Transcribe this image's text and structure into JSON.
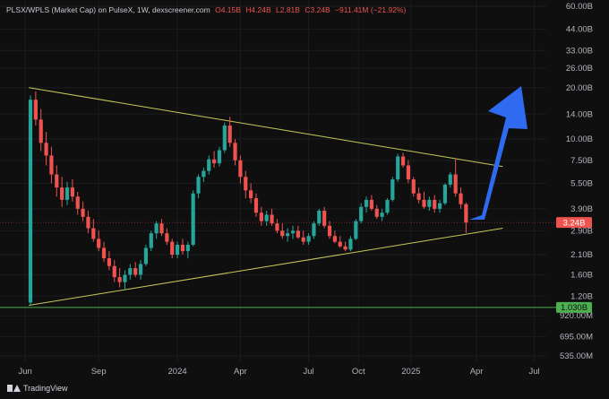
{
  "header": {
    "pair": "PLSX/WPLS (Market Cap) on PulseX, 1W, dexscreener.com",
    "o": "O4.15B",
    "h": "H4.24B",
    "l": "L2.81B",
    "c": "C3.24B",
    "change": "−911.41M (−21.92%)"
  },
  "footer": {
    "brand": "TradingView"
  },
  "colors": {
    "up": "#26a69a",
    "down": "#ef5350",
    "trend": "#c8c85a",
    "arrow": "#2f6bf0",
    "support": "#4caf50",
    "bg": "#0f0f10"
  },
  "chart_data": {
    "type": "candlestick",
    "y_scale": "log",
    "ylim": [
      "535.00M",
      "60.00B"
    ],
    "y_tick_labels": [
      "60.00B",
      "44.00B",
      "33.00B",
      "26.00B",
      "20.00B",
      "14.00B",
      "10.00B",
      "7.50B",
      "5.50B",
      "3.90B",
      "2.90B",
      "2.10B",
      "1.60B",
      "1.20B",
      "920.00M",
      "695.00M",
      "535.00M"
    ],
    "x_tick_labels": [
      "Jun",
      "Sep",
      "2024",
      "Apr",
      "Jul",
      "Oct",
      "2025",
      "Apr",
      "Jul"
    ],
    "last_price_label": "3.24B",
    "support_label": "1.030B",
    "annotations": [
      "descending trendline",
      "ascending trendline",
      "blue up arrow"
    ],
    "candles": [
      [
        1.1,
        18,
        1.05,
        17
      ],
      [
        17,
        19,
        12,
        13
      ],
      [
        13,
        15,
        8.5,
        9.5
      ],
      [
        9.5,
        11,
        7,
        8
      ],
      [
        8,
        9,
        5.5,
        6.2
      ],
      [
        6.2,
        7,
        4.6,
        5.2
      ],
      [
        5.2,
        6,
        4,
        4.4
      ],
      [
        4.4,
        5.6,
        4.1,
        5.2
      ],
      [
        5.2,
        5.8,
        4.3,
        4.6
      ],
      [
        4.6,
        4.9,
        3.6,
        3.9
      ],
      [
        3.9,
        4.3,
        3.3,
        3.5
      ],
      [
        3.5,
        3.8,
        2.8,
        3.0
      ],
      [
        3.0,
        3.4,
        2.5,
        2.6
      ],
      [
        2.6,
        2.9,
        2.2,
        2.3
      ],
      [
        2.3,
        2.5,
        1.9,
        2.0
      ],
      [
        2.0,
        2.2,
        1.7,
        1.8
      ],
      [
        1.8,
        1.95,
        1.45,
        1.55
      ],
      [
        1.55,
        1.75,
        1.35,
        1.45
      ],
      [
        1.45,
        1.7,
        1.3,
        1.6
      ],
      [
        1.6,
        1.85,
        1.5,
        1.75
      ],
      [
        1.75,
        1.9,
        1.55,
        1.6
      ],
      [
        1.6,
        1.95,
        1.5,
        1.85
      ],
      [
        1.85,
        2.4,
        1.8,
        2.3
      ],
      [
        2.3,
        2.9,
        2.2,
        2.8
      ],
      [
        2.8,
        3.3,
        2.6,
        3.2
      ],
      [
        3.2,
        3.4,
        2.7,
        2.8
      ],
      [
        2.8,
        3.0,
        2.4,
        2.5
      ],
      [
        2.5,
        2.6,
        2.0,
        2.1
      ],
      [
        2.1,
        2.5,
        2.0,
        2.4
      ],
      [
        2.4,
        2.6,
        2.1,
        2.2
      ],
      [
        2.2,
        2.5,
        2.0,
        2.4
      ],
      [
        2.4,
        5.0,
        2.35,
        4.8
      ],
      [
        4.8,
        6.2,
        4.5,
        6.0
      ],
      [
        6.0,
        6.8,
        5.6,
        6.5
      ],
      [
        6.5,
        8.0,
        6.2,
        7.6
      ],
      [
        7.6,
        8.5,
        6.8,
        7.2
      ],
      [
        7.2,
        9.0,
        6.9,
        8.6
      ],
      [
        8.6,
        12.5,
        8.3,
        12.0
      ],
      [
        12.0,
        13.5,
        9.0,
        9.5
      ],
      [
        9.5,
        10.0,
        7.0,
        7.5
      ],
      [
        7.5,
        8.0,
        5.5,
        6.0
      ],
      [
        6.0,
        6.5,
        4.5,
        5.0
      ],
      [
        5.0,
        5.5,
        4.2,
        4.5
      ],
      [
        4.5,
        4.8,
        3.5,
        3.7
      ],
      [
        3.7,
        4.0,
        3.1,
        3.3
      ],
      [
        3.3,
        3.8,
        3.1,
        3.6
      ],
      [
        3.6,
        3.9,
        3.1,
        3.2
      ],
      [
        3.2,
        3.4,
        2.8,
        2.9
      ],
      [
        2.9,
        3.2,
        2.6,
        2.7
      ],
      [
        2.7,
        3.0,
        2.5,
        2.8
      ],
      [
        2.8,
        3.1,
        2.6,
        2.9
      ],
      [
        2.9,
        3.1,
        2.6,
        2.65
      ],
      [
        2.65,
        2.9,
        2.4,
        2.5
      ],
      [
        2.5,
        2.8,
        2.4,
        2.7
      ],
      [
        2.7,
        3.3,
        2.6,
        3.2
      ],
      [
        3.2,
        3.9,
        3.1,
        3.8
      ],
      [
        3.8,
        4.0,
        3.0,
        3.1
      ],
      [
        3.1,
        3.3,
        2.6,
        2.7
      ],
      [
        2.7,
        2.9,
        2.45,
        2.5
      ],
      [
        2.5,
        2.7,
        2.3,
        2.35
      ],
      [
        2.35,
        2.5,
        2.2,
        2.25
      ],
      [
        2.25,
        2.7,
        2.2,
        2.6
      ],
      [
        2.6,
        3.4,
        2.55,
        3.3
      ],
      [
        3.3,
        4.2,
        3.2,
        4.0
      ],
      [
        4.0,
        4.6,
        3.7,
        4.4
      ],
      [
        4.4,
        4.7,
        3.8,
        3.9
      ],
      [
        3.9,
        4.1,
        3.4,
        3.5
      ],
      [
        3.5,
        3.9,
        3.3,
        3.7
      ],
      [
        3.7,
        4.5,
        3.6,
        4.4
      ],
      [
        4.4,
        6.0,
        4.3,
        5.8
      ],
      [
        5.8,
        8.2,
        5.6,
        7.9
      ],
      [
        7.9,
        8.3,
        6.8,
        7.0
      ],
      [
        7.0,
        7.5,
        5.5,
        5.8
      ],
      [
        5.8,
        6.0,
        4.6,
        4.8
      ],
      [
        4.8,
        5.2,
        4.2,
        4.4
      ],
      [
        4.4,
        4.9,
        3.9,
        4.0
      ],
      [
        4.0,
        4.6,
        3.8,
        4.4
      ],
      [
        4.4,
        4.7,
        3.7,
        3.9
      ],
      [
        3.9,
        4.4,
        3.7,
        4.2
      ],
      [
        4.2,
        5.5,
        4.1,
        5.4
      ],
      [
        5.4,
        6.4,
        5.2,
        6.2
      ],
      [
        6.2,
        7.6,
        4.6,
        4.8
      ],
      [
        4.8,
        5.2,
        3.9,
        4.15
      ],
      [
        4.15,
        4.24,
        2.81,
        3.24
      ]
    ]
  }
}
